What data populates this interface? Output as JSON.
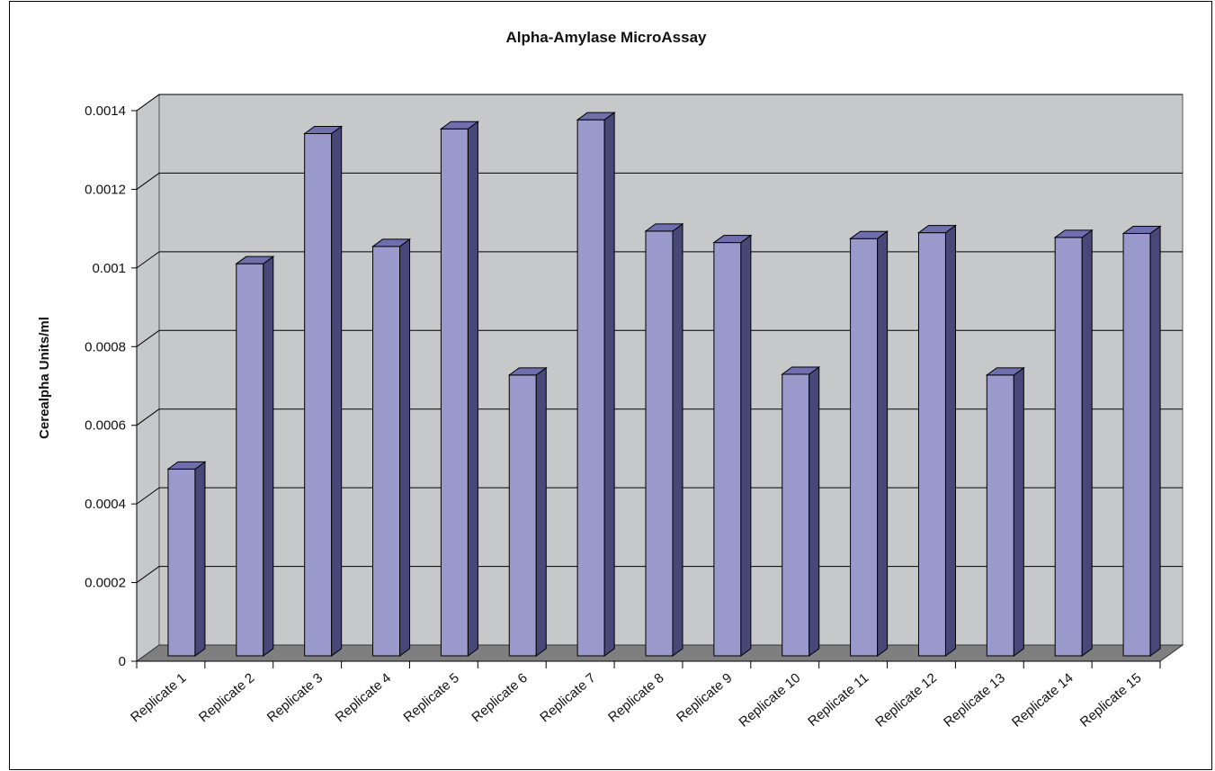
{
  "chart_data": {
    "type": "bar",
    "title": "Alpha-Amylase  MicroAssay",
    "xlabel": "",
    "ylabel": "Cerealpha Units/ml",
    "ylim": [
      0,
      0.0014
    ],
    "yticks": [
      "0",
      "0.0002",
      "0.0004",
      "0.0006",
      "0.0008",
      "0.001",
      "0.0012",
      "0.0014"
    ],
    "grid": true,
    "legend": "none",
    "categories": [
      "Replicate 1",
      "Replicate 2",
      "Replicate 3",
      "Replicate 4",
      "Replicate 5",
      "Replicate 6",
      "Replicate 7",
      "Replicate 8",
      "Replicate 9",
      "Replicate 10",
      "Replicate 11",
      "Replicate 12",
      "Replicate 13",
      "Replicate 14",
      "Replicate 15"
    ],
    "values": [
      0.000475,
      0.000997,
      0.001328,
      0.001041,
      0.00134,
      0.000714,
      0.001363,
      0.00108,
      0.001051,
      0.000716,
      0.001061,
      0.001076,
      0.000714,
      0.001064,
      0.001074
    ],
    "colors": {
      "bar_front": "#9999cc",
      "bar_side": "#474778",
      "bar_top": "#6f6fb0",
      "wall": "#c7c8ca",
      "floor": "#7f7f7f",
      "gridline": "#000000"
    }
  }
}
